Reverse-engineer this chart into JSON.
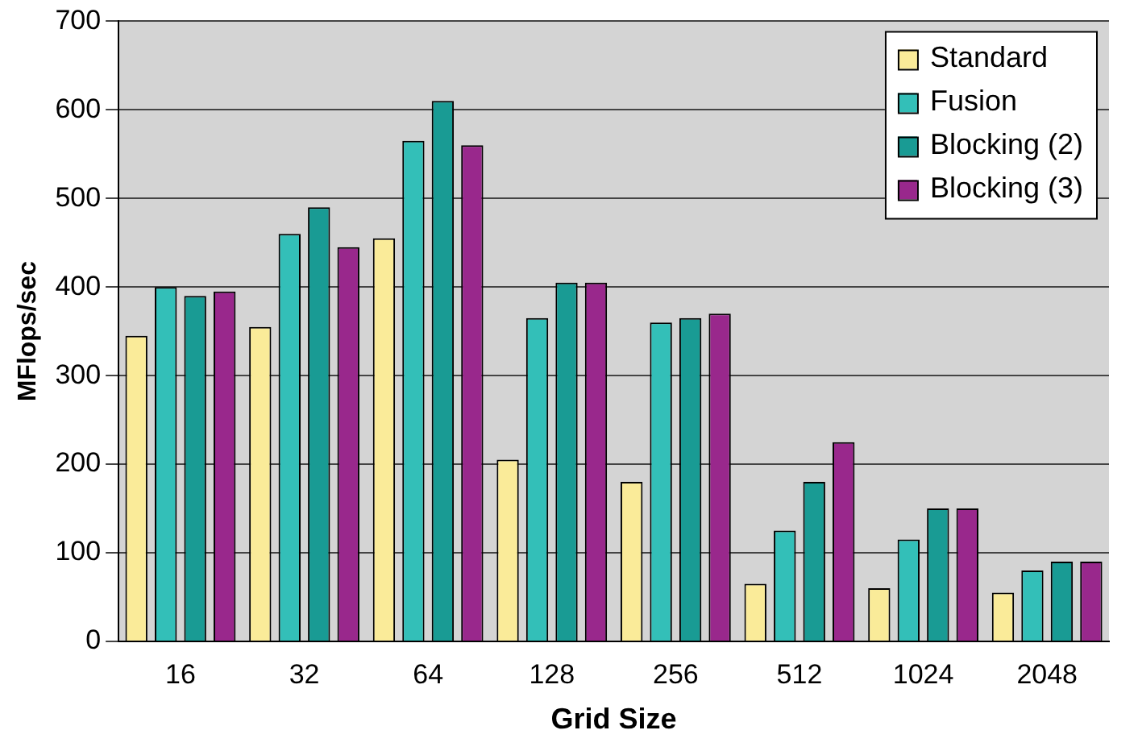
{
  "chart_data": {
    "type": "bar",
    "xlabel": "Grid Size",
    "ylabel": "MFlops/sec",
    "categories": [
      "16",
      "32",
      "64",
      "128",
      "256",
      "512",
      "1024",
      "2048"
    ],
    "series": [
      {
        "name": "Standard",
        "color": "#faeb99",
        "values": [
          345,
          355,
          455,
          205,
          180,
          65,
          60,
          55
        ]
      },
      {
        "name": "Fusion",
        "color": "#33bfb8",
        "values": [
          400,
          460,
          565,
          365,
          360,
          125,
          115,
          80
        ]
      },
      {
        "name": "Blocking (2)",
        "color": "#199b94",
        "values": [
          390,
          490,
          610,
          405,
          365,
          180,
          150,
          90
        ]
      },
      {
        "name": "Blocking (3)",
        "color": "#99288c",
        "values": [
          395,
          445,
          560,
          405,
          370,
          225,
          150,
          90
        ]
      }
    ],
    "ylim": [
      0,
      700
    ],
    "yticks": [
      0,
      100,
      200,
      300,
      400,
      500,
      600,
      700
    ],
    "grid": "y",
    "legend": "top right"
  }
}
